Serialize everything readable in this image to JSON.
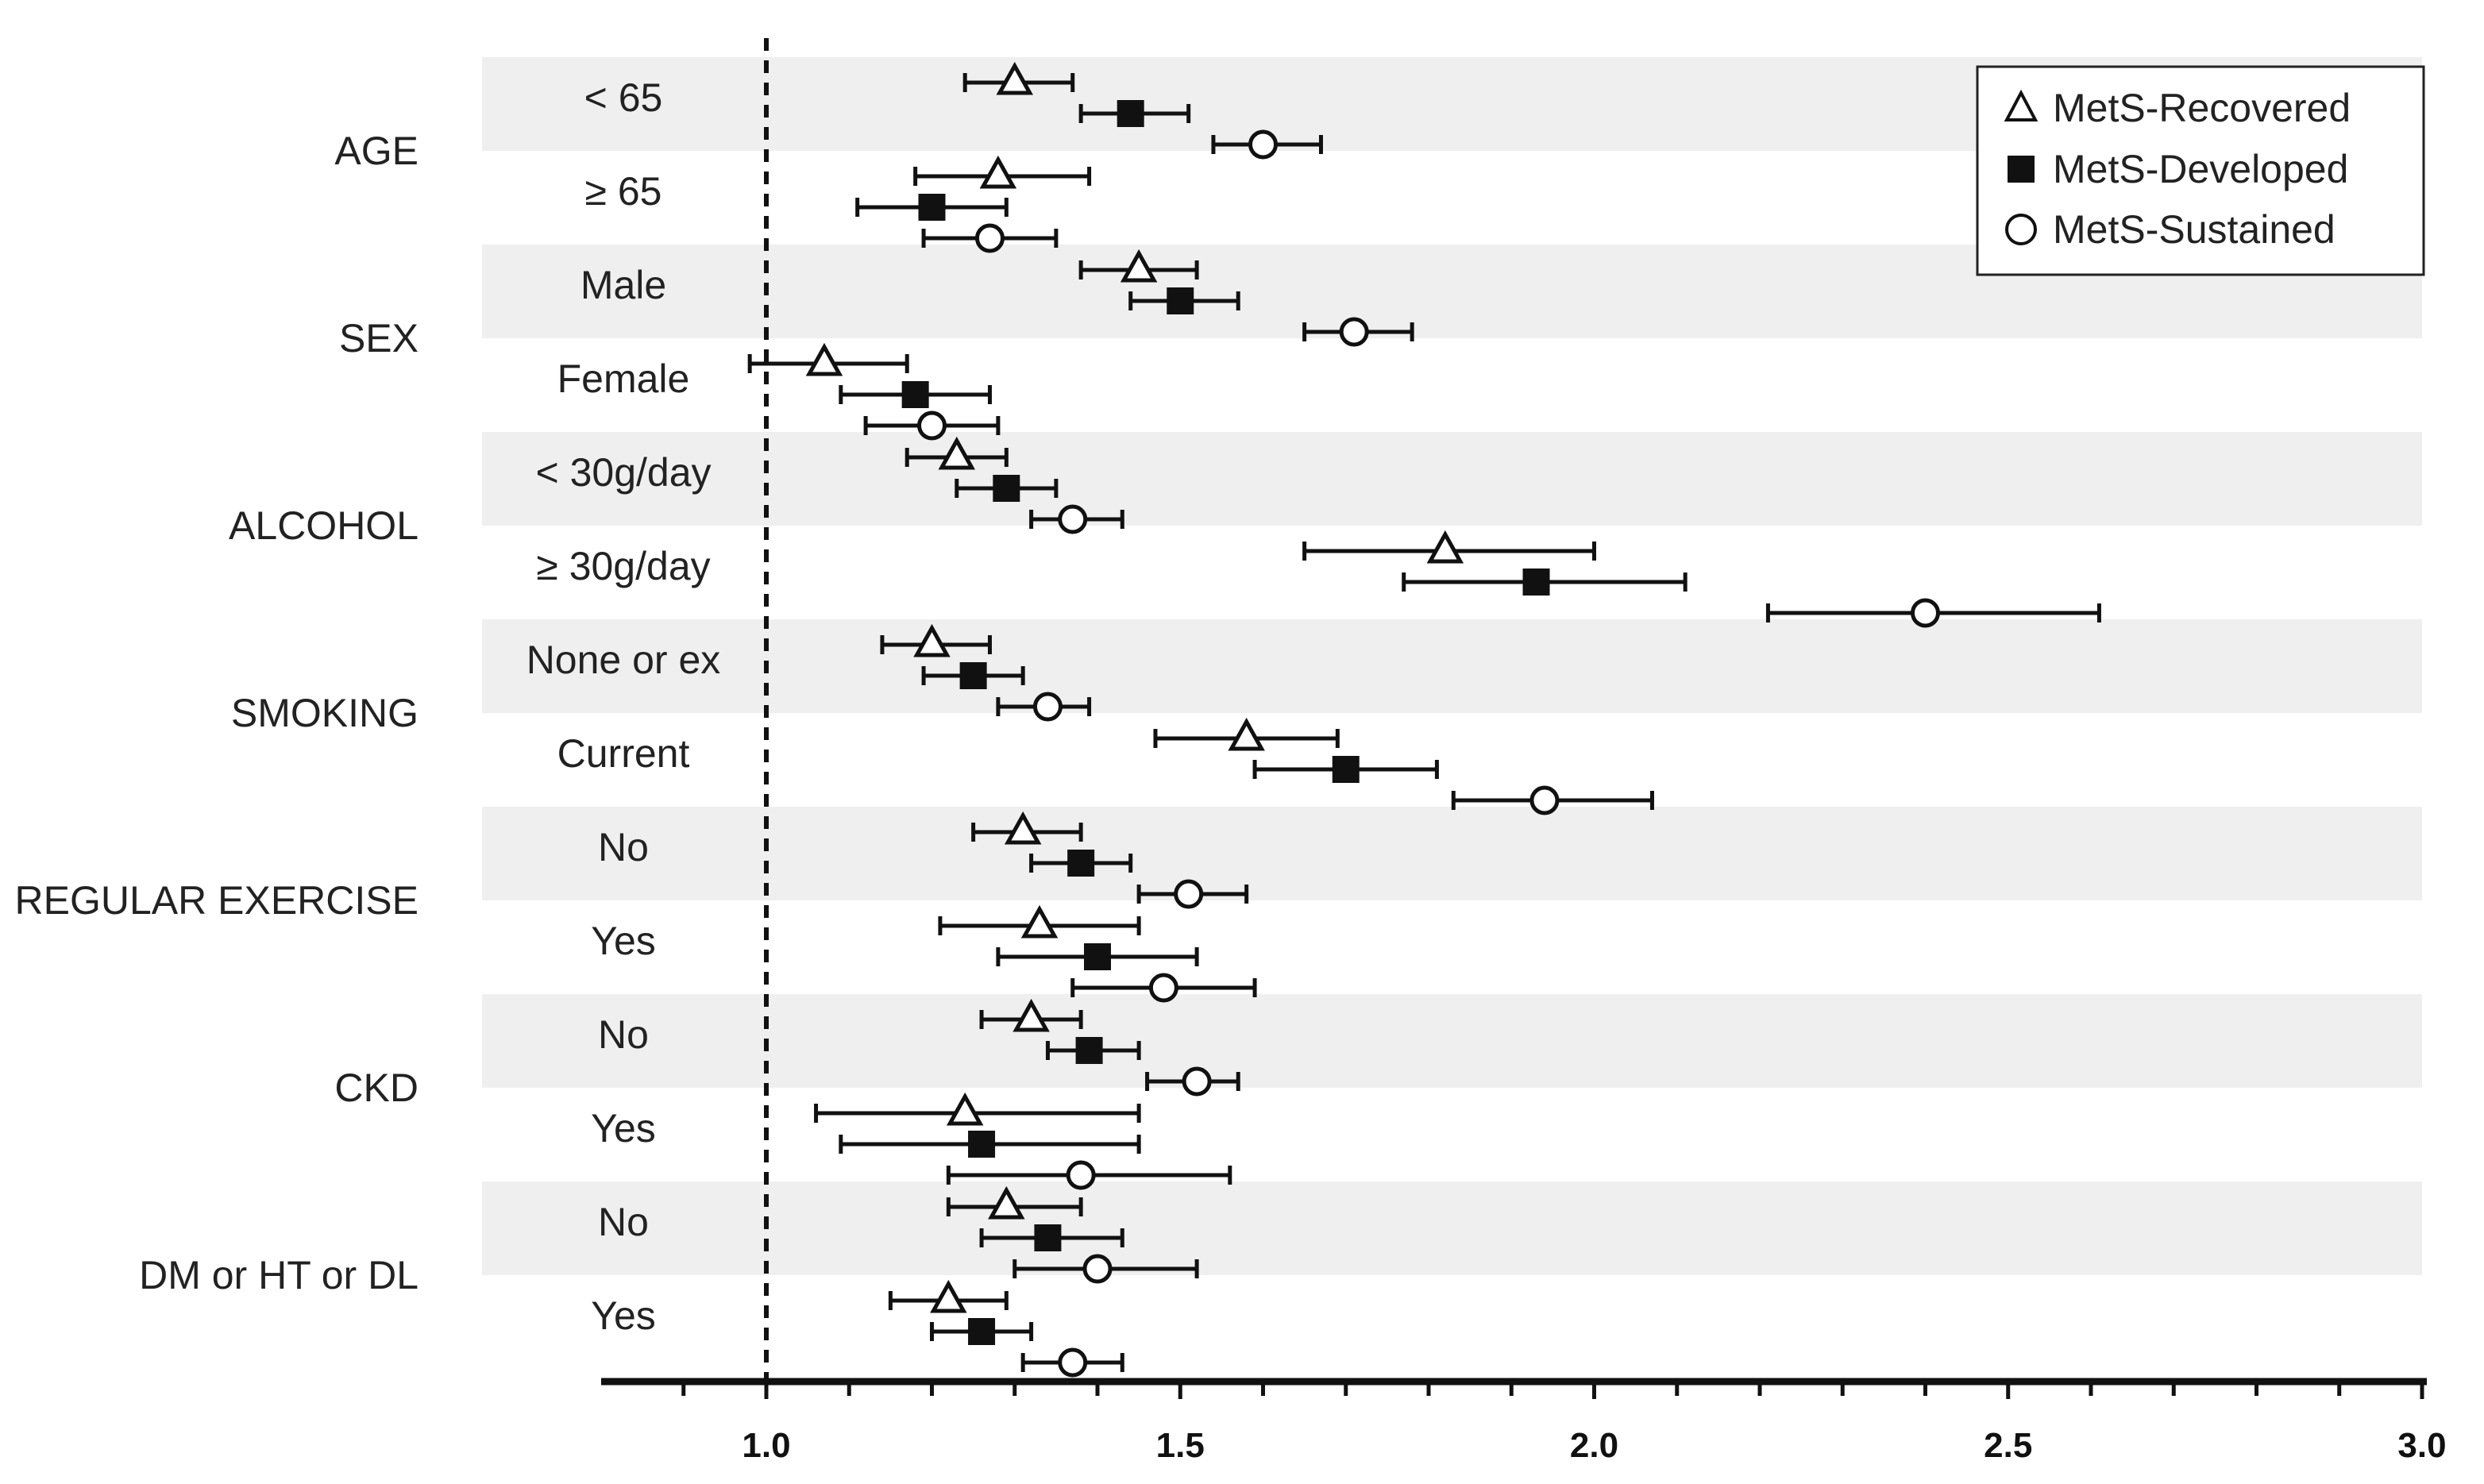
{
  "chart_data": {
    "type": "scatter",
    "subtype": "forest-plot",
    "title": "",
    "xlabel": "",
    "ylabel": "",
    "xlim": [
      0.8,
      3.0
    ],
    "reference_line": 1.0,
    "x_ticks": [
      {
        "value": 1.0,
        "label": "1.0"
      },
      {
        "value": 1.5,
        "label": "1.5"
      },
      {
        "value": 2.0,
        "label": "2.0"
      },
      {
        "value": 2.5,
        "label": "2.5"
      },
      {
        "value": 3.0,
        "label": "3.0"
      }
    ],
    "minor_tick_step": 0.1,
    "legend_position": "top-right",
    "series": [
      {
        "name": "MetS-Recovered",
        "marker": "triangle",
        "legend_label": "MetS-Recovered"
      },
      {
        "name": "MetS-Developed",
        "marker": "square",
        "legend_label": "MetS-Developed"
      },
      {
        "name": "MetS-Sustained",
        "marker": "circle",
        "legend_label": "MetS-Sustained"
      }
    ],
    "categories": [
      {
        "name": "AGE",
        "subgroups": [
          {
            "label": "< 65",
            "values": [
              {
                "series": "MetS-Recovered",
                "est": 1.3,
                "lo": 1.24,
                "hi": 1.37
              },
              {
                "series": "MetS-Developed",
                "est": 1.44,
                "lo": 1.38,
                "hi": 1.51
              },
              {
                "series": "MetS-Sustained",
                "est": 1.6,
                "lo": 1.54,
                "hi": 1.67
              }
            ]
          },
          {
            "label": "≥ 65",
            "values": [
              {
                "series": "MetS-Recovered",
                "est": 1.28,
                "lo": 1.18,
                "hi": 1.39
              },
              {
                "series": "MetS-Developed",
                "est": 1.2,
                "lo": 1.11,
                "hi": 1.29
              },
              {
                "series": "MetS-Sustained",
                "est": 1.27,
                "lo": 1.19,
                "hi": 1.35
              }
            ]
          }
        ]
      },
      {
        "name": "SEX",
        "subgroups": [
          {
            "label": "Male",
            "values": [
              {
                "series": "MetS-Recovered",
                "est": 1.45,
                "lo": 1.38,
                "hi": 1.52
              },
              {
                "series": "MetS-Developed",
                "est": 1.5,
                "lo": 1.44,
                "hi": 1.57
              },
              {
                "series": "MetS-Sustained",
                "est": 1.71,
                "lo": 1.65,
                "hi": 1.78
              }
            ]
          },
          {
            "label": "Female",
            "values": [
              {
                "series": "MetS-Recovered",
                "est": 1.07,
                "lo": 0.98,
                "hi": 1.17
              },
              {
                "series": "MetS-Developed",
                "est": 1.18,
                "lo": 1.09,
                "hi": 1.27
              },
              {
                "series": "MetS-Sustained",
                "est": 1.2,
                "lo": 1.12,
                "hi": 1.28
              }
            ]
          }
        ]
      },
      {
        "name": "ALCOHOL",
        "subgroups": [
          {
            "label": "< 30g/day",
            "values": [
              {
                "series": "MetS-Recovered",
                "est": 1.23,
                "lo": 1.17,
                "hi": 1.29
              },
              {
                "series": "MetS-Developed",
                "est": 1.29,
                "lo": 1.23,
                "hi": 1.35
              },
              {
                "series": "MetS-Sustained",
                "est": 1.37,
                "lo": 1.32,
                "hi": 1.43
              }
            ]
          },
          {
            "label": "≥ 30g/day",
            "values": [
              {
                "series": "MetS-Recovered",
                "est": 1.82,
                "lo": 1.65,
                "hi": 2.0
              },
              {
                "series": "MetS-Developed",
                "est": 1.93,
                "lo": 1.77,
                "hi": 2.11
              },
              {
                "series": "MetS-Sustained",
                "est": 2.4,
                "lo": 2.21,
                "hi": 2.61
              }
            ]
          }
        ]
      },
      {
        "name": "SMOKING",
        "subgroups": [
          {
            "label": "None or ex",
            "values": [
              {
                "series": "MetS-Recovered",
                "est": 1.2,
                "lo": 1.14,
                "hi": 1.27
              },
              {
                "series": "MetS-Developed",
                "est": 1.25,
                "lo": 1.19,
                "hi": 1.31
              },
              {
                "series": "MetS-Sustained",
                "est": 1.34,
                "lo": 1.28,
                "hi": 1.39
              }
            ]
          },
          {
            "label": "Current",
            "values": [
              {
                "series": "MetS-Recovered",
                "est": 1.58,
                "lo": 1.47,
                "hi": 1.69
              },
              {
                "series": "MetS-Developed",
                "est": 1.7,
                "lo": 1.59,
                "hi": 1.81
              },
              {
                "series": "MetS-Sustained",
                "est": 1.94,
                "lo": 1.83,
                "hi": 2.07
              }
            ]
          }
        ]
      },
      {
        "name": "REGULAR  EXERCISE",
        "subgroups": [
          {
            "label": "No",
            "values": [
              {
                "series": "MetS-Recovered",
                "est": 1.31,
                "lo": 1.25,
                "hi": 1.38
              },
              {
                "series": "MetS-Developed",
                "est": 1.38,
                "lo": 1.32,
                "hi": 1.44
              },
              {
                "series": "MetS-Sustained",
                "est": 1.51,
                "lo": 1.45,
                "hi": 1.58
              }
            ]
          },
          {
            "label": "Yes",
            "values": [
              {
                "series": "MetS-Recovered",
                "est": 1.33,
                "lo": 1.21,
                "hi": 1.45
              },
              {
                "series": "MetS-Developed",
                "est": 1.4,
                "lo": 1.28,
                "hi": 1.52
              },
              {
                "series": "MetS-Sustained",
                "est": 1.48,
                "lo": 1.37,
                "hi": 1.59
              }
            ]
          }
        ]
      },
      {
        "name": "CKD",
        "subgroups": [
          {
            "label": "No",
            "values": [
              {
                "series": "MetS-Recovered",
                "est": 1.32,
                "lo": 1.26,
                "hi": 1.38
              },
              {
                "series": "MetS-Developed",
                "est": 1.39,
                "lo": 1.34,
                "hi": 1.45
              },
              {
                "series": "MetS-Sustained",
                "est": 1.52,
                "lo": 1.46,
                "hi": 1.57
              }
            ]
          },
          {
            "label": "Yes",
            "values": [
              {
                "series": "MetS-Recovered",
                "est": 1.24,
                "lo": 1.06,
                "hi": 1.45
              },
              {
                "series": "MetS-Developed",
                "est": 1.26,
                "lo": 1.09,
                "hi": 1.45
              },
              {
                "series": "MetS-Sustained",
                "est": 1.38,
                "lo": 1.22,
                "hi": 1.56
              }
            ]
          }
        ]
      },
      {
        "name": "DM or HT or DL",
        "subgroups": [
          {
            "label": "No",
            "values": [
              {
                "series": "MetS-Recovered",
                "est": 1.29,
                "lo": 1.22,
                "hi": 1.38
              },
              {
                "series": "MetS-Developed",
                "est": 1.34,
                "lo": 1.26,
                "hi": 1.43
              },
              {
                "series": "MetS-Sustained",
                "est": 1.4,
                "lo": 1.3,
                "hi": 1.52
              }
            ]
          },
          {
            "label": "Yes",
            "values": [
              {
                "series": "MetS-Recovered",
                "est": 1.22,
                "lo": 1.15,
                "hi": 1.29
              },
              {
                "series": "MetS-Developed",
                "est": 1.26,
                "lo": 1.2,
                "hi": 1.32
              },
              {
                "series": "MetS-Sustained",
                "est": 1.37,
                "lo": 1.31,
                "hi": 1.43
              }
            ]
          }
        ]
      }
    ]
  }
}
